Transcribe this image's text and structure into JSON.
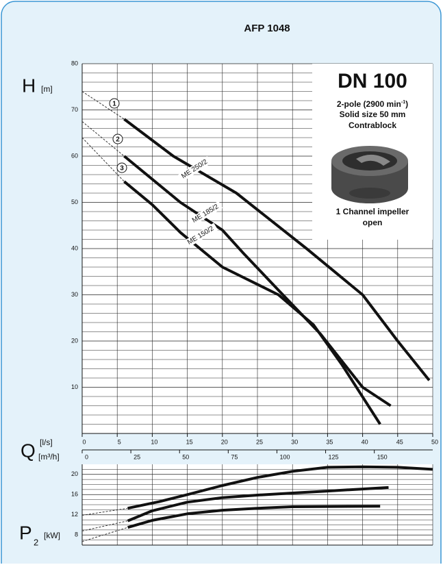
{
  "chart_data": [
    {
      "type": "line",
      "title": "AFP 1048",
      "y_label": "H",
      "y_unit": "[m]",
      "x_label": "Q",
      "x_unit": "[l/s]",
      "x2_unit": "[m³/h]",
      "xlim": [
        0,
        50
      ],
      "xticks": [
        0,
        5,
        10,
        15,
        20,
        25,
        30,
        35,
        40,
        45,
        50
      ],
      "x2lim": [
        0,
        180
      ],
      "x2ticks": [
        0,
        25,
        50,
        75,
        100,
        125,
        150
      ],
      "ylim": [
        0,
        80
      ],
      "yticks": [
        10,
        20,
        30,
        40,
        50,
        60,
        70,
        80
      ],
      "minor_yticks": [
        2,
        4,
        6,
        8,
        12,
        14,
        16,
        18,
        22,
        24,
        26,
        28,
        32,
        34,
        36,
        38,
        42,
        44,
        46,
        48,
        52,
        54,
        56,
        58,
        62,
        64,
        66,
        68,
        72,
        74,
        76,
        78
      ],
      "grid": true,
      "series": [
        {
          "name": "ME 250/2",
          "marker": "1",
          "color": "#111111",
          "x": [
            6,
            13,
            22,
            32,
            40,
            45,
            49.5
          ],
          "values": [
            68,
            60,
            52,
            40,
            30,
            20,
            11.5
          ],
          "ext_x": [
            0,
            6
          ],
          "ext_values": [
            74,
            68
          ]
        },
        {
          "name": "ME 185/2",
          "marker": "2",
          "color": "#111111",
          "x": [
            6,
            14,
            20,
            23,
            28,
            34,
            40,
            44
          ],
          "values": [
            60,
            50,
            44,
            39,
            31,
            21.5,
            10,
            6
          ],
          "ext_x": [
            0,
            6
          ],
          "ext_values": [
            67.5,
            60
          ]
        },
        {
          "name": "ME 150/2",
          "marker": "3",
          "color": "#111111",
          "x": [
            6,
            10,
            14,
            20,
            28,
            33,
            37,
            42.5
          ],
          "values": [
            54.5,
            49.5,
            43.5,
            36,
            30,
            23.5,
            15,
            2
          ],
          "ext_x": [
            0,
            6
          ],
          "ext_values": [
            64,
            54.5
          ]
        }
      ]
    },
    {
      "type": "line",
      "y_label": "P",
      "y_sub": "2",
      "y_unit": "[kW]",
      "xlim": [
        0,
        50
      ],
      "xticks": [
        0,
        5,
        10,
        15,
        20,
        25,
        30,
        35,
        40,
        45,
        50
      ],
      "ylim": [
        6,
        22
      ],
      "yticks": [
        8,
        12,
        16,
        20
      ],
      "minor_yticks": [
        7,
        9,
        10,
        11,
        13,
        14,
        15,
        17,
        18,
        19,
        21
      ],
      "grid": true,
      "series": [
        {
          "color": "#111111",
          "x": [
            6.5,
            11,
            15,
            20,
            25,
            30,
            35,
            40,
            45,
            50
          ],
          "values": [
            13.3,
            14.6,
            16,
            17.8,
            19.4,
            20.6,
            21.4,
            21.5,
            21.4,
            21
          ],
          "ext_x": [
            0,
            6.5
          ],
          "ext_values": [
            11.9,
            13.3
          ]
        },
        {
          "color": "#111111",
          "x": [
            6.5,
            10,
            15,
            20,
            25,
            30,
            35,
            40,
            43.7
          ],
          "values": [
            10.8,
            12.8,
            14.5,
            15.4,
            15.9,
            16.3,
            16.7,
            17.1,
            17.4
          ],
          "ext_x": [
            0,
            6.5
          ],
          "ext_values": [
            8.8,
            10.8
          ]
        },
        {
          "color": "#111111",
          "x": [
            6.5,
            10,
            15,
            20,
            25,
            30,
            42.5
          ],
          "values": [
            9.5,
            10.9,
            12.2,
            12.9,
            13.3,
            13.6,
            13.7
          ],
          "ext_x": [
            0,
            6.5
          ],
          "ext_values": [
            6.7,
            9.5
          ]
        }
      ]
    }
  ],
  "info_box": {
    "heading": "DN 100",
    "pole_text": "2-pole (2900 min",
    "pole_sup": "-1",
    "pole_end": ")",
    "lines": [
      "Solid size 50 mm",
      "Contrablock"
    ],
    "impeller_lines": [
      "1 Channel impeller",
      "open"
    ]
  }
}
